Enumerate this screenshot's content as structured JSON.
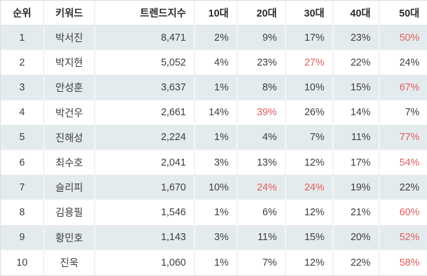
{
  "colors": {
    "highlight_red": "#e25c5c",
    "stripe_bg": "#e4ebee",
    "header_text": "#2a2a2a",
    "body_text": "#3d3d3d"
  },
  "chart_data": {
    "type": "table",
    "columns": [
      {
        "key": "rank",
        "label": "순위"
      },
      {
        "key": "keyword",
        "label": "키워드"
      },
      {
        "key": "trend_index",
        "label": "트렌드지수"
      },
      {
        "key": "age_10s",
        "label": "10대"
      },
      {
        "key": "age_20s",
        "label": "20대"
      },
      {
        "key": "age_30s",
        "label": "30대"
      },
      {
        "key": "age_40s",
        "label": "40대"
      },
      {
        "key": "age_50s",
        "label": "50대"
      }
    ],
    "rows": [
      {
        "rank": "1",
        "keyword": "박서진",
        "trend_index": "8,471",
        "percents": [
          "2%",
          "9%",
          "17%",
          "23%",
          "50%"
        ],
        "highlighted": [
          false,
          false,
          false,
          false,
          true
        ]
      },
      {
        "rank": "2",
        "keyword": "박지현",
        "trend_index": "5,052",
        "percents": [
          "4%",
          "23%",
          "27%",
          "22%",
          "24%"
        ],
        "highlighted": [
          false,
          false,
          true,
          false,
          false
        ]
      },
      {
        "rank": "3",
        "keyword": "안성훈",
        "trend_index": "3,637",
        "percents": [
          "1%",
          "8%",
          "10%",
          "15%",
          "67%"
        ],
        "highlighted": [
          false,
          false,
          false,
          false,
          true
        ]
      },
      {
        "rank": "4",
        "keyword": "박건우",
        "trend_index": "2,661",
        "percents": [
          "14%",
          "39%",
          "26%",
          "14%",
          "7%"
        ],
        "highlighted": [
          false,
          true,
          false,
          false,
          false
        ]
      },
      {
        "rank": "5",
        "keyword": "진해성",
        "trend_index": "2,224",
        "percents": [
          "1%",
          "4%",
          "7%",
          "11%",
          "77%"
        ],
        "highlighted": [
          false,
          false,
          false,
          false,
          true
        ]
      },
      {
        "rank": "6",
        "keyword": "최수호",
        "trend_index": "2,041",
        "percents": [
          "3%",
          "13%",
          "12%",
          "17%",
          "54%"
        ],
        "highlighted": [
          false,
          false,
          false,
          false,
          true
        ]
      },
      {
        "rank": "7",
        "keyword": "슬리피",
        "trend_index": "1,670",
        "percents": [
          "10%",
          "24%",
          "24%",
          "19%",
          "22%"
        ],
        "highlighted": [
          false,
          true,
          true,
          false,
          false
        ]
      },
      {
        "rank": "8",
        "keyword": "김용필",
        "trend_index": "1,546",
        "percents": [
          "1%",
          "6%",
          "12%",
          "21%",
          "60%"
        ],
        "highlighted": [
          false,
          false,
          false,
          false,
          true
        ]
      },
      {
        "rank": "9",
        "keyword": "황민호",
        "trend_index": "1,143",
        "percents": [
          "3%",
          "11%",
          "15%",
          "20%",
          "52%"
        ],
        "highlighted": [
          false,
          false,
          false,
          false,
          true
        ]
      },
      {
        "rank": "10",
        "keyword": "진욱",
        "trend_index": "1,060",
        "percents": [
          "1%",
          "7%",
          "12%",
          "22%",
          "58%"
        ],
        "highlighted": [
          false,
          false,
          false,
          false,
          true
        ]
      }
    ]
  }
}
